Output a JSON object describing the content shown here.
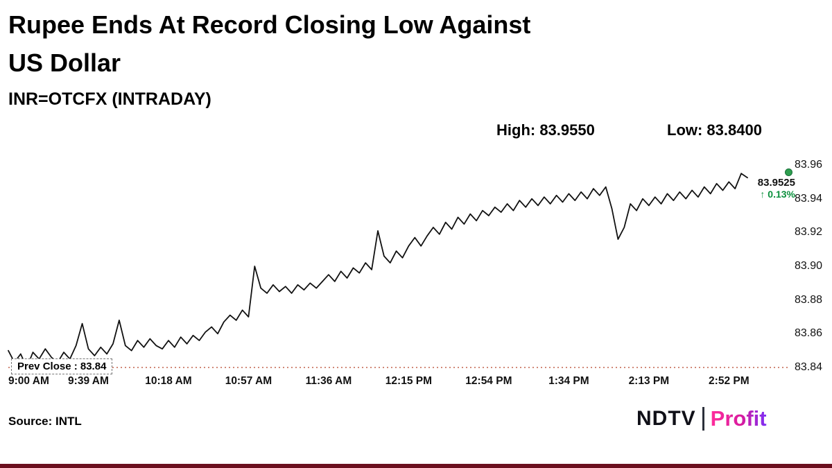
{
  "header": {
    "title_line1": "Rupee Ends At Record Closing Low Against",
    "title_line2": "US Dollar",
    "subtitle": "INR=OTCFX (INTRADAY)",
    "high_label": "High: 83.9550",
    "low_label": "Low: 83.8400"
  },
  "footer": {
    "source": "Source: INTL",
    "brand_ndtv": "NDTV",
    "brand_profit": "Profit"
  },
  "colors": {
    "line": "#111111",
    "prev_close_line": "#c2604a",
    "last_dot": "#2e9e4f",
    "change_pct": "#0a8f3c",
    "profit_brand": "#d81b9e",
    "bottom_bar": "#6b0f1e"
  },
  "chart_data": {
    "type": "line",
    "title": "INR=OTCFX (INTRADAY)",
    "high": 83.955,
    "low": 83.84,
    "prev_close": 83.84,
    "prev_close_label": "Prev Close : 83.84",
    "last_price": "83.9525",
    "change_pct": "↑ 0.13%",
    "x_ticks": [
      "9:00 AM",
      "9:39 AM",
      "10:18 AM",
      "10:57 AM",
      "11:36 AM",
      "12:15 PM",
      "12:54 PM",
      "1:34 PM",
      "2:13 PM",
      "2:52 PM"
    ],
    "x_tick_interval_min": 39,
    "y_ticks": [
      83.96,
      83.94,
      83.92,
      83.9,
      83.88,
      83.86,
      83.84
    ],
    "y_range": [
      83.84,
      83.96
    ],
    "grid": false,
    "y_axis_side": "right",
    "t_step_min": 3,
    "values": [
      83.85,
      83.843,
      83.848,
      83.84,
      83.849,
      83.845,
      83.851,
      83.846,
      83.843,
      83.849,
      83.845,
      83.853,
      83.866,
      83.851,
      83.847,
      83.852,
      83.848,
      83.854,
      83.868,
      83.853,
      83.85,
      83.856,
      83.852,
      83.857,
      83.853,
      83.851,
      83.856,
      83.852,
      83.858,
      83.854,
      83.859,
      83.856,
      83.861,
      83.864,
      83.86,
      83.867,
      83.871,
      83.868,
      83.874,
      83.87,
      83.9,
      83.887,
      83.884,
      83.889,
      83.885,
      83.888,
      83.884,
      83.889,
      83.886,
      83.89,
      83.887,
      83.891,
      83.895,
      83.891,
      83.897,
      83.893,
      83.899,
      83.896,
      83.902,
      83.898,
      83.921,
      83.906,
      83.902,
      83.909,
      83.905,
      83.912,
      83.917,
      83.912,
      83.918,
      83.923,
      83.919,
      83.926,
      83.922,
      83.929,
      83.925,
      83.931,
      83.927,
      83.933,
      83.93,
      83.935,
      83.932,
      83.937,
      83.933,
      83.939,
      83.935,
      83.94,
      83.936,
      83.941,
      83.937,
      83.942,
      83.938,
      83.943,
      83.939,
      83.944,
      83.94,
      83.946,
      83.942,
      83.947,
      83.934,
      83.916,
      83.923,
      83.937,
      83.933,
      83.94,
      83.936,
      83.941,
      83.937,
      83.943,
      83.939,
      83.944,
      83.94,
      83.945,
      83.941,
      83.947,
      83.943,
      83.949,
      83.945,
      83.95,
      83.946,
      83.955,
      83.9525
    ]
  }
}
